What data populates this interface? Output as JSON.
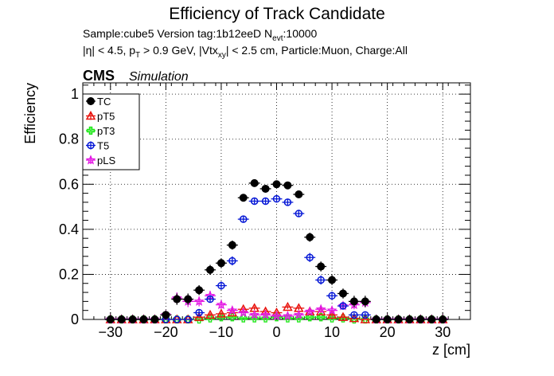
{
  "chart_data": {
    "type": "scatter",
    "title": "Efficiency of Track Candidate",
    "info_line1": "Sample:cube5   Version tag:1b12eeD  N",
    "info_line1_sub": "evt",
    "info_line1_end": ":10000",
    "info_line2_a": "|η| < 4.5, p",
    "info_line2_sub1": "T",
    "info_line2_b": " > 0.9 GeV, |Vtx",
    "info_line2_sub2": "xy",
    "info_line2_c": "| < 2.5 cm, Particle:Muon, Charge:All",
    "cms_label": "CMS",
    "simulation_label": "Simulation",
    "xlabel": "z [cm]",
    "ylabel": "Efficiency",
    "xlim": [
      -35,
      35
    ],
    "ylim": [
      0,
      1.05
    ],
    "xticks": [
      -30,
      -20,
      -10,
      0,
      10,
      20,
      30
    ],
    "yticks": [
      0,
      0.2,
      0.4,
      0.6,
      0.8,
      1
    ],
    "ytick_labels": [
      "0",
      "0.2",
      "0.4",
      "0.6",
      "0.8",
      "1"
    ],
    "grid": true,
    "legend_position": "top-left",
    "x": [
      -30,
      -28,
      -26,
      -24,
      -22,
      -20,
      -18,
      -16,
      -14,
      -12,
      -10,
      -8,
      -6,
      -4,
      -2,
      0,
      2,
      4,
      6,
      8,
      10,
      12,
      14,
      16,
      18,
      20,
      22,
      24,
      26,
      28,
      30
    ],
    "x_error": 1,
    "series": [
      {
        "name": "TC",
        "color": "#000000",
        "marker": "filled-circle",
        "values": [
          0,
          0,
          0,
          0,
          0,
          0.02,
          0.09,
          0.09,
          0.13,
          0.22,
          0.25,
          0.33,
          0.54,
          0.605,
          0.58,
          0.6,
          0.595,
          0.555,
          0.365,
          0.235,
          0.175,
          0.115,
          0.08,
          0.08,
          0,
          0,
          0,
          0,
          0,
          0,
          0
        ],
        "errors": [
          0.02,
          0.02,
          0.02,
          0.02,
          0.02,
          0.02,
          0.025,
          0.025,
          0.022,
          0.022,
          0.02,
          0.02,
          0.015,
          0.012,
          0.012,
          0.012,
          0.012,
          0.015,
          0.02,
          0.022,
          0.022,
          0.022,
          0.025,
          0.025,
          0.02,
          0.02,
          0.02,
          0.02,
          0.02,
          0.02,
          0.02
        ]
      },
      {
        "name": "pT5",
        "color": "#e8120c",
        "marker": "open-triangle",
        "values": [
          0,
          0,
          0,
          0,
          0,
          0,
          0,
          0,
          0.01,
          0.02,
          0.025,
          0.03,
          0.045,
          0.05,
          0.035,
          0.03,
          0.055,
          0.05,
          0.035,
          0.035,
          0.02,
          0.01,
          0.005,
          0,
          0,
          0,
          0,
          0,
          0,
          0,
          0
        ],
        "errors": [
          0,
          0,
          0,
          0,
          0,
          0,
          0,
          0,
          0.008,
          0.008,
          0.008,
          0.008,
          0.008,
          0.008,
          0.008,
          0.008,
          0.008,
          0.008,
          0.008,
          0.008,
          0.008,
          0.008,
          0.005,
          0,
          0,
          0,
          0,
          0,
          0,
          0,
          0
        ]
      },
      {
        "name": "pT3",
        "color": "#1de817",
        "marker": "open-cross",
        "values": [
          0,
          0,
          0,
          0,
          0,
          0,
          0,
          0,
          0,
          0.005,
          0.01,
          0.01,
          0.005,
          0.005,
          0.005,
          0.01,
          0.005,
          0.005,
          0.01,
          0.01,
          0.005,
          0.005,
          0,
          0,
          0,
          0,
          0,
          0,
          0,
          0,
          0
        ],
        "errors": [
          0,
          0,
          0,
          0,
          0,
          0,
          0,
          0,
          0,
          0.005,
          0.005,
          0.005,
          0.005,
          0.005,
          0.005,
          0.005,
          0.005,
          0.005,
          0.005,
          0.005,
          0.005,
          0.005,
          0,
          0,
          0,
          0,
          0,
          0,
          0,
          0,
          0
        ]
      },
      {
        "name": "T5",
        "color": "#0517d6",
        "marker": "open-circle",
        "values": [
          0,
          0,
          0,
          0,
          0,
          0,
          0,
          0,
          0.03,
          0.09,
          0.15,
          0.26,
          0.445,
          0.525,
          0.525,
          0.535,
          0.52,
          0.47,
          0.275,
          0.175,
          0.105,
          0.06,
          0.02,
          0.02,
          0,
          0,
          0,
          0,
          0,
          0,
          0
        ],
        "errors": [
          0,
          0,
          0,
          0,
          0,
          0,
          0,
          0,
          0.012,
          0.015,
          0.018,
          0.02,
          0.015,
          0.012,
          0.012,
          0.012,
          0.012,
          0.015,
          0.02,
          0.02,
          0.018,
          0.015,
          0.01,
          0.01,
          0,
          0,
          0,
          0,
          0,
          0,
          0
        ]
      },
      {
        "name": "pLS",
        "color": "#e317e3",
        "marker": "open-star",
        "values": [
          0,
          0,
          0,
          0,
          0,
          0.02,
          0.095,
          0.08,
          0.08,
          0.105,
          0.065,
          0.04,
          0.03,
          0.02,
          0.02,
          0.015,
          0.015,
          0.02,
          0.035,
          0.045,
          0.04,
          0.06,
          0.065,
          0.075,
          0,
          0,
          0,
          0,
          0,
          0,
          0
        ],
        "errors": [
          0.015,
          0.015,
          0.015,
          0.015,
          0.015,
          0.015,
          0.025,
          0.025,
          0.022,
          0.022,
          0.018,
          0.012,
          0.01,
          0.008,
          0.008,
          0.008,
          0.008,
          0.008,
          0.012,
          0.012,
          0.012,
          0.015,
          0.02,
          0.022,
          0.015,
          0.015,
          0.015,
          0.015,
          0.015,
          0.015,
          0.015
        ]
      }
    ]
  }
}
